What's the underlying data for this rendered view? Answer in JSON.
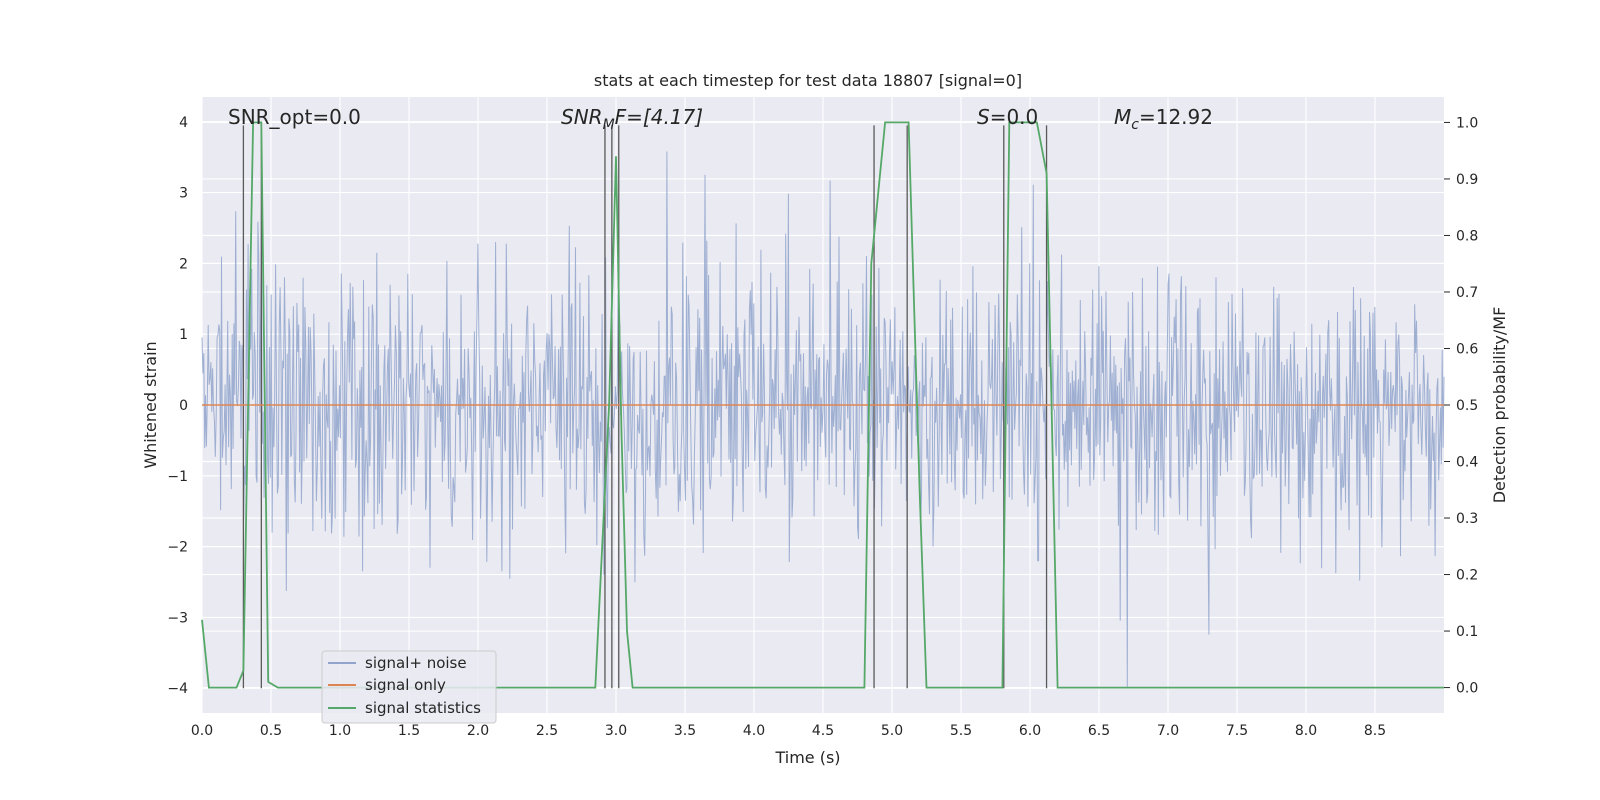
{
  "chart_data": {
    "type": "line",
    "title": "stats at each timestep for test data 18807 [signal=0]",
    "xlabel": "Time (s)",
    "ylabel": "Whitened strain",
    "ylabel_right": "Detection probability/MF",
    "xlim": [
      0.0,
      9.0
    ],
    "ylim": [
      -4.35,
      4.35
    ],
    "ylim_right": [
      -0.045,
      1.045
    ],
    "x_ticks": [
      "0.0",
      "0.5",
      "1.0",
      "1.5",
      "2.0",
      "2.5",
      "3.0",
      "3.5",
      "4.0",
      "4.5",
      "5.0",
      "5.5",
      "6.0",
      "6.5",
      "7.0",
      "7.5",
      "8.0",
      "8.5"
    ],
    "y_ticks": [
      "4",
      "3",
      "2",
      "1",
      "0",
      "−1",
      "−2",
      "−3",
      "−4"
    ],
    "y_ticks_right": [
      "1.0",
      "0.9",
      "0.8",
      "0.7",
      "0.6",
      "0.5",
      "0.4",
      "0.3",
      "0.2",
      "0.1",
      "0.0"
    ],
    "grid": true,
    "legend_position": "lower-left",
    "annotations": {
      "snr_opt": "SNR_opt=0.0",
      "snr_mf_main": "SNR",
      "snr_mf_sub": "M",
      "snr_mf_rest": "F=[4.17]",
      "s_main": "S",
      "s_rest": "=0.0",
      "mc_main": "M",
      "mc_sub": "c",
      "mc_rest": "=12.92"
    },
    "series": [
      {
        "name": "signal+ noise",
        "color": "#91a4cc",
        "kind": "noise",
        "amplitude_band": [
          -2.0,
          2.0
        ],
        "max_spike": 3.95,
        "min_spike": -4.0
      },
      {
        "name": "signal only",
        "color": "#dd8452",
        "kind": "flat",
        "values": 0.0
      },
      {
        "name": "signal statistics",
        "color": "#55a868",
        "kind": "line",
        "axis": "right",
        "x": [
          0.0,
          0.05,
          0.1,
          0.25,
          0.3,
          0.37,
          0.43,
          0.48,
          0.55,
          0.6,
          2.85,
          2.95,
          3.0,
          3.04,
          3.08,
          3.12,
          4.8,
          4.85,
          4.95,
          5.12,
          5.2,
          5.25,
          5.8,
          5.85,
          6.05,
          6.12,
          6.2,
          9.0
        ],
        "values": [
          0.12,
          0.0,
          0.0,
          0.0,
          0.03,
          1.0,
          1.0,
          0.01,
          0.0,
          0.0,
          0.0,
          0.5,
          0.94,
          0.45,
          0.1,
          0.0,
          0.0,
          0.75,
          1.0,
          1.0,
          0.35,
          0.0,
          0.0,
          1.0,
          1.0,
          0.91,
          0.0,
          0.0
        ]
      }
    ],
    "markers": {
      "color": "#5a5a5a",
      "x": [
        0.3,
        0.43,
        2.92,
        2.97,
        3.02,
        4.87,
        5.11,
        5.81,
        6.12
      ]
    }
  }
}
